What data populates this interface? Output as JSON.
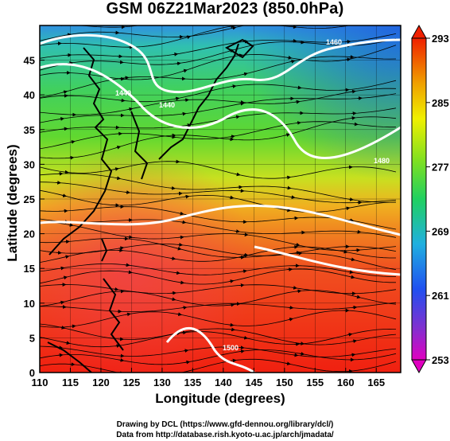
{
  "title": "GSM 06Z21Mar2023 (850.0hPa)",
  "xlabel": "Longitude (degrees)",
  "ylabel": "Latitude (degrees)",
  "credits": {
    "line1": "Drawing by DCL (https://www.gfd-dennou.org/library/dcl/)",
    "line2": "Data from http://database.rish.kyoto-u.ac.jp/arch/jmadata/"
  },
  "axes": {
    "x": {
      "min": 110,
      "max": 169,
      "ticks": [
        110,
        115,
        120,
        125,
        130,
        135,
        140,
        145,
        150,
        155,
        160,
        165
      ]
    },
    "y": {
      "min": 0,
      "max": 50,
      "ticks": [
        0,
        5,
        10,
        15,
        20,
        25,
        30,
        35,
        40,
        45
      ]
    }
  },
  "colorbar": {
    "min": 253,
    "max": 293,
    "labels": [
      253,
      261,
      269,
      277,
      285,
      293
    ],
    "colors": [
      "#e000c0",
      "#6030e0",
      "#2080f0",
      "#20d0d0",
      "#20d040",
      "#90e020",
      "#f0f000",
      "#f09000",
      "#f03000",
      "#f02000"
    ]
  },
  "contour_labels": [
    "1440",
    "1460",
    "1480",
    "1500"
  ],
  "colors": {
    "contour": "#ffffff",
    "streamline": "#000000",
    "coast": "#000000"
  }
}
